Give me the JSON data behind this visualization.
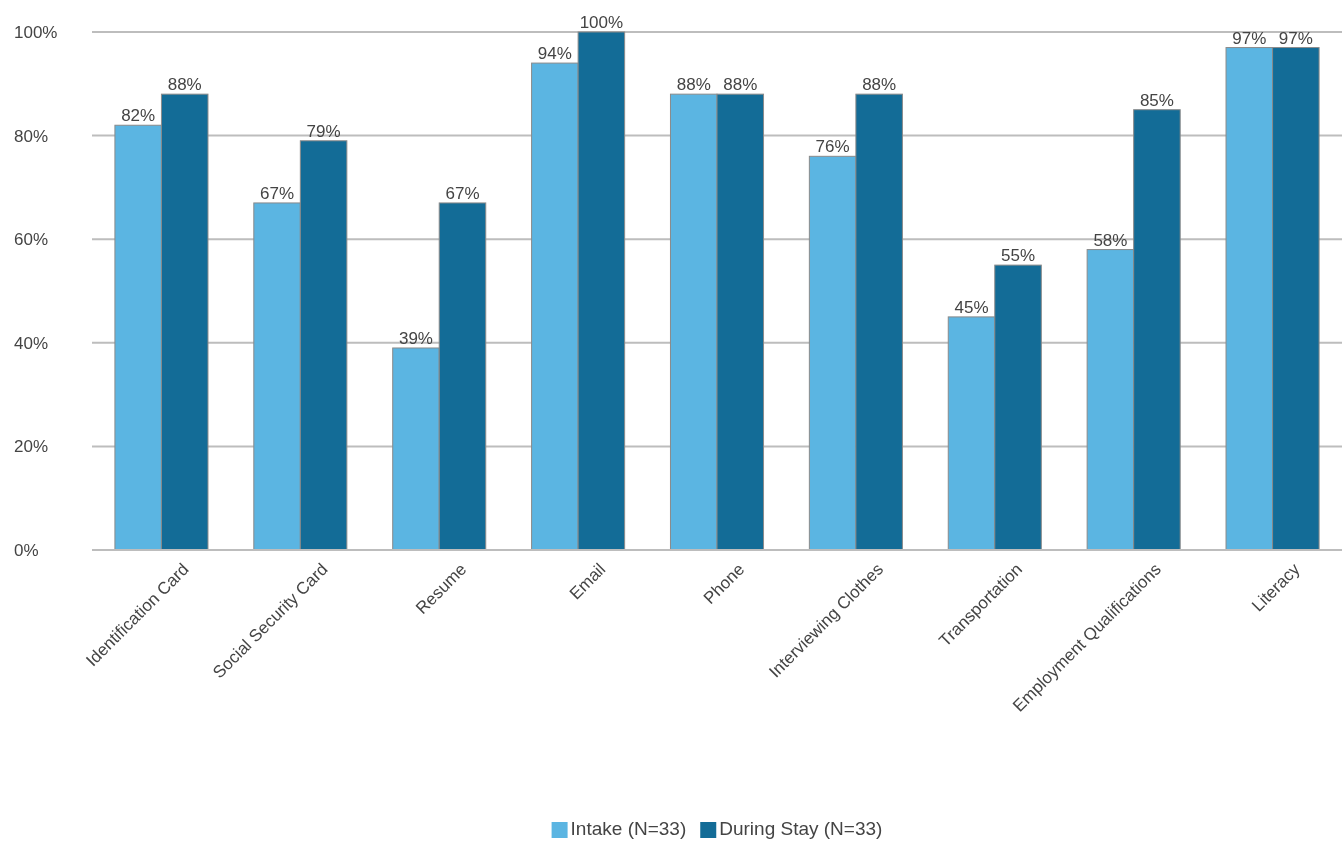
{
  "chart_data": {
    "type": "bar",
    "categories": [
      "Identification Card",
      "Social Security Card",
      "Resume",
      "Email",
      "Phone",
      "Interviewing Clothes",
      "Transportation",
      "Employment Qualifications",
      "Literacy"
    ],
    "series": [
      {
        "name": "Intake (N=33)",
        "color": "#5bb5e2",
        "values": [
          82,
          67,
          39,
          94,
          88,
          76,
          45,
          58,
          97
        ],
        "value_labels": [
          "82%",
          "67%",
          "39%",
          "94%",
          "88%",
          "76%",
          "45%",
          "58%",
          "97%"
        ]
      },
      {
        "name": "During Stay (N=33)",
        "color": "#136c97",
        "values": [
          88,
          79,
          67,
          100,
          88,
          88,
          55,
          85,
          97
        ],
        "value_labels": [
          "88%",
          "79%",
          "67%",
          "100%",
          "88%",
          "88%",
          "55%",
          "85%",
          "97%"
        ]
      }
    ],
    "ylim": [
      0,
      100
    ],
    "yticks": [
      {
        "value": 0,
        "label": "0%"
      },
      {
        "value": 20,
        "label": "20%"
      },
      {
        "value": 40,
        "label": "40%"
      },
      {
        "value": 60,
        "label": "60%"
      },
      {
        "value": 80,
        "label": "80%"
      },
      {
        "value": 100,
        "label": "100%"
      }
    ],
    "grid": "y",
    "legend": "bottom"
  }
}
